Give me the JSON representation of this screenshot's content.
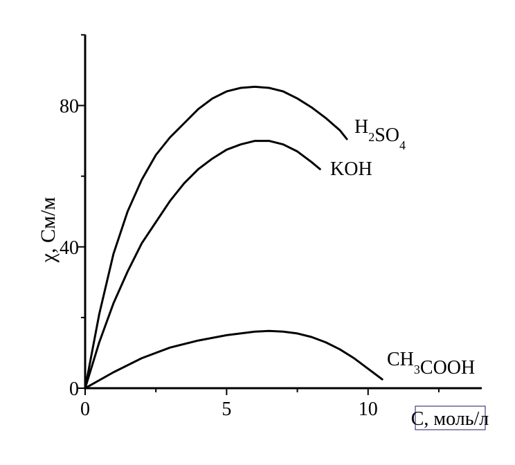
{
  "chart_data": {
    "type": "line",
    "title": "",
    "xlabel": "C, моль/л",
    "ylabel": "χ, См/м",
    "xlim": [
      0,
      14
    ],
    "ylim": [
      0,
      100
    ],
    "x_ticks": [
      0,
      5,
      10
    ],
    "y_ticks": [
      0,
      40,
      80
    ],
    "grid": false,
    "series": [
      {
        "name": "H2SO4",
        "label_main": [
          "H",
          "SO"
        ],
        "label_subs": [
          "2",
          "4"
        ],
        "color": "#000000",
        "x": [
          0,
          0.5,
          1,
          1.5,
          2,
          2.5,
          3,
          3.5,
          4,
          4.5,
          5,
          5.5,
          6,
          6.5,
          7,
          7.5,
          8,
          8.5,
          9,
          9.25
        ],
        "y": [
          0,
          21,
          38,
          50,
          59,
          66,
          71,
          75,
          79,
          82,
          84,
          85,
          85.3,
          85,
          84,
          82,
          79.5,
          76.5,
          73,
          70.5
        ]
      },
      {
        "name": "KOH",
        "label_main": [
          "KOH"
        ],
        "label_subs": [],
        "color": "#000000",
        "x": [
          0,
          0.5,
          1,
          1.5,
          2,
          2.5,
          3,
          3.5,
          4,
          4.5,
          5,
          5.5,
          6,
          6.5,
          7,
          7.5,
          8,
          8.3
        ],
        "y": [
          0,
          13,
          24,
          33,
          41,
          47,
          53,
          58,
          62,
          65,
          67.5,
          69,
          70,
          70,
          69,
          67,
          64,
          62
        ]
      },
      {
        "name": "CH3COOH",
        "label_main": [
          "CH",
          "COOH"
        ],
        "label_subs": [
          "3"
        ],
        "color": "#000000",
        "x": [
          0,
          1,
          2,
          3,
          4,
          5,
          6,
          6.5,
          7,
          7.5,
          8,
          8.5,
          9,
          9.5,
          10,
          10.5
        ],
        "y": [
          0,
          4.5,
          8.5,
          11.5,
          13.5,
          15,
          16,
          16.2,
          16,
          15.5,
          14.5,
          13,
          11,
          8.5,
          5.5,
          2.5
        ]
      }
    ]
  }
}
